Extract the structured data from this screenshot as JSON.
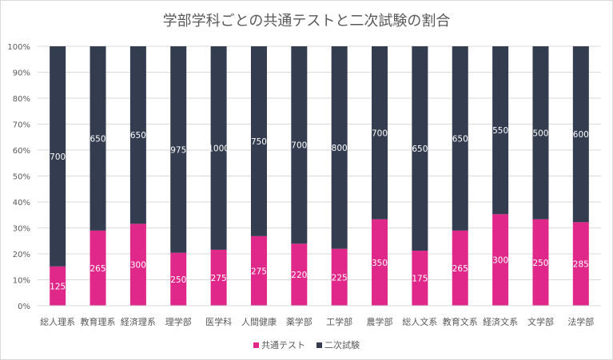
{
  "chart_data": {
    "type": "bar",
    "stacked": "percent",
    "title": "学部学科ごとの共通テストと二次試験の割合",
    "categories": [
      "総人理系",
      "教育理系",
      "経済理系",
      "理学部",
      "医学科",
      "人間健康",
      "薬学部",
      "工学部",
      "農学部",
      "総人文系",
      "教育文系",
      "経済文系",
      "文学部",
      "法学部"
    ],
    "series": [
      {
        "name": "共通テスト",
        "color": "#e0288a",
        "values": [
          125,
          265,
          300,
          250,
          275,
          275,
          220,
          225,
          350,
          175,
          265,
          300,
          250,
          285
        ]
      },
      {
        "name": "二次試験",
        "color": "#333d4f",
        "values": [
          700,
          650,
          650,
          975,
          1000,
          750,
          700,
          800,
          700,
          650,
          650,
          550,
          500,
          600
        ]
      }
    ],
    "yticks": [
      "0%",
      "10%",
      "20%",
      "30%",
      "40%",
      "50%",
      "60%",
      "70%",
      "80%",
      "90%",
      "100%"
    ],
    "ylim": [
      0,
      100
    ],
    "grid": true,
    "legend": "bottom"
  }
}
